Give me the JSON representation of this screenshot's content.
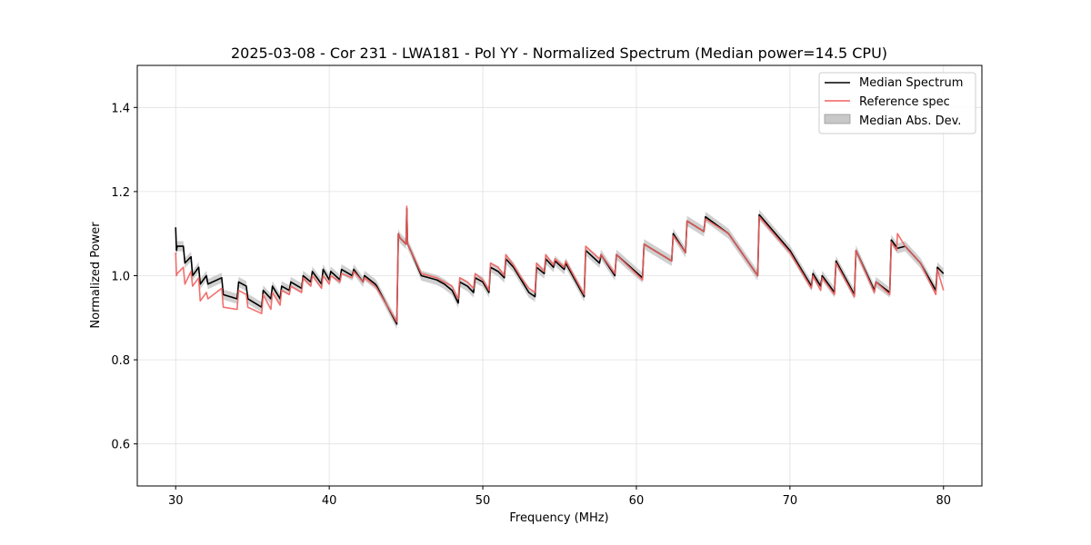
{
  "chart_data": {
    "type": "line",
    "title": "2025-03-08 - Cor 231 - LWA181 - Pol YY - Normalized Spectrum (Median power=14.5 CPU)",
    "xlabel": "Frequency (MHz)",
    "ylabel": "Normalized Power",
    "xlim": [
      27.5,
      82.5
    ],
    "ylim": [
      0.5,
      1.5
    ],
    "xticks": [
      30,
      40,
      50,
      60,
      70,
      80
    ],
    "yticks": [
      0.6,
      0.8,
      1.0,
      1.2,
      1.4
    ],
    "xtick_labels": [
      "30",
      "40",
      "50",
      "60",
      "70",
      "80"
    ],
    "ytick_labels": [
      "0.6",
      "0.8",
      "1.0",
      "1.2",
      "1.4"
    ],
    "grid": true,
    "legend_position": "top-right",
    "legend": [
      "Median Spectrum",
      "Reference spec",
      "Median Abs. Dev."
    ],
    "series": [
      {
        "name": "Median Spectrum",
        "color": "#000000",
        "x": [
          30.0,
          30.05,
          30.1,
          30.5,
          30.6,
          31.0,
          31.1,
          31.5,
          31.6,
          32.0,
          32.1,
          33.0,
          33.1,
          34.0,
          34.1,
          34.6,
          34.7,
          35.6,
          35.7,
          36.2,
          36.3,
          36.8,
          36.9,
          37.4,
          37.5,
          38.2,
          38.3,
          38.8,
          38.9,
          39.5,
          39.6,
          40.0,
          40.1,
          40.7,
          40.8,
          41.5,
          41.6,
          42.2,
          42.3,
          43.0,
          43.1,
          44.4,
          44.5,
          44.6,
          45.0,
          45.05,
          45.1,
          45.3,
          46.0,
          47.0,
          47.5,
          48.0,
          48.4,
          48.5,
          49.0,
          49.4,
          49.5,
          50.0,
          50.4,
          50.5,
          51.0,
          51.4,
          51.5,
          52.0,
          52.5,
          53.0,
          53.4,
          53.5,
          54.0,
          54.1,
          54.6,
          54.7,
          55.3,
          55.4,
          56.6,
          56.7,
          57.6,
          57.7,
          58.6,
          58.7,
          60.4,
          60.5,
          62.3,
          62.4,
          63.2,
          63.3,
          64.4,
          64.5,
          66.0,
          67.9,
          68.0,
          70.0,
          71.4,
          71.5,
          72.0,
          72.1,
          72.9,
          73.0,
          74.2,
          74.3,
          75.5,
          75.6,
          76.5,
          76.6,
          77.0,
          77.5,
          78.5,
          79.5,
          79.6,
          80.0
        ],
        "y": [
          1.115,
          1.06,
          1.07,
          1.07,
          1.03,
          1.045,
          1.0,
          1.02,
          0.98,
          1.0,
          0.98,
          0.995,
          0.955,
          0.945,
          0.985,
          0.975,
          0.945,
          0.925,
          0.965,
          0.945,
          0.975,
          0.945,
          0.975,
          0.965,
          0.985,
          0.97,
          1.0,
          0.985,
          1.01,
          0.98,
          1.015,
          0.99,
          1.01,
          0.99,
          1.015,
          1.0,
          1.015,
          0.985,
          1.0,
          0.98,
          0.975,
          0.885,
          1.1,
          1.09,
          1.075,
          1.16,
          1.075,
          1.06,
          1.0,
          0.99,
          0.98,
          0.965,
          0.935,
          0.985,
          0.975,
          0.96,
          0.995,
          0.985,
          0.96,
          1.02,
          1.01,
          0.995,
          1.04,
          1.02,
          0.99,
          0.96,
          0.95,
          1.02,
          1.005,
          1.04,
          1.02,
          1.035,
          1.015,
          1.03,
          0.95,
          1.06,
          1.03,
          1.05,
          1.0,
          1.05,
          0.995,
          1.075,
          1.035,
          1.1,
          1.055,
          1.13,
          1.105,
          1.14,
          1.1,
          1.0,
          1.145,
          1.06,
          0.975,
          1.005,
          0.975,
          1.0,
          0.96,
          1.035,
          0.955,
          1.06,
          0.965,
          0.985,
          0.96,
          1.085,
          1.065,
          1.07,
          1.03,
          0.965,
          1.02,
          1.005
        ]
      },
      {
        "name": "Reference spec",
        "color": "#f0605e",
        "x": [
          30.0,
          30.05,
          30.1,
          30.5,
          30.6,
          31.0,
          31.1,
          31.5,
          31.6,
          32.0,
          32.1,
          33.0,
          33.1,
          34.0,
          34.1,
          34.6,
          34.7,
          35.6,
          35.7,
          36.2,
          36.3,
          36.8,
          36.9,
          37.4,
          37.5,
          38.2,
          38.3,
          38.8,
          38.9,
          39.5,
          39.6,
          40.0,
          40.1,
          40.7,
          40.8,
          41.5,
          41.6,
          42.2,
          42.3,
          43.0,
          43.1,
          44.4,
          44.5,
          44.6,
          45.0,
          45.05,
          45.1,
          45.3,
          46.0,
          47.0,
          47.5,
          48.0,
          48.4,
          48.5,
          49.0,
          49.4,
          49.5,
          50.0,
          50.4,
          50.5,
          51.0,
          51.4,
          51.5,
          52.0,
          52.5,
          53.0,
          53.4,
          53.5,
          54.0,
          54.1,
          54.6,
          54.7,
          55.3,
          55.4,
          56.6,
          56.7,
          57.6,
          57.7,
          58.6,
          58.7,
          60.4,
          60.5,
          62.3,
          62.4,
          63.2,
          63.3,
          64.4,
          64.5,
          66.0,
          67.9,
          68.0,
          70.0,
          71.4,
          71.5,
          72.0,
          72.1,
          72.9,
          73.0,
          74.2,
          74.3,
          75.5,
          75.6,
          76.5,
          76.6,
          76.95,
          77.0,
          77.5,
          78.5,
          79.5,
          79.6,
          80.0
        ],
        "y": [
          1.055,
          1.0,
          1.005,
          1.02,
          0.98,
          1.01,
          0.975,
          0.995,
          0.94,
          0.96,
          0.945,
          0.97,
          0.925,
          0.92,
          0.965,
          0.955,
          0.925,
          0.91,
          0.955,
          0.92,
          0.96,
          0.93,
          0.965,
          0.955,
          0.975,
          0.96,
          0.995,
          0.975,
          1.0,
          0.97,
          1.0,
          0.98,
          1.0,
          0.985,
          1.005,
          0.995,
          1.01,
          0.985,
          0.995,
          0.975,
          0.97,
          0.89,
          1.1,
          1.09,
          1.075,
          1.165,
          1.075,
          1.06,
          1.005,
          0.995,
          0.985,
          0.975,
          0.945,
          0.995,
          0.985,
          0.97,
          1.005,
          0.99,
          0.965,
          1.03,
          1.02,
          1.0,
          1.05,
          1.025,
          0.995,
          0.97,
          0.96,
          1.03,
          1.01,
          1.05,
          1.025,
          1.04,
          1.02,
          1.035,
          0.955,
          1.07,
          1.04,
          1.05,
          1.005,
          1.05,
          0.99,
          1.075,
          1.035,
          1.095,
          1.055,
          1.13,
          1.105,
          1.135,
          1.1,
          1.0,
          1.14,
          1.055,
          0.97,
          1.0,
          0.965,
          0.995,
          0.955,
          1.03,
          0.95,
          1.06,
          0.96,
          0.985,
          0.955,
          1.08,
          1.06,
          1.1,
          1.07,
          1.03,
          0.955,
          1.015,
          0.965
        ]
      }
    ],
    "band": {
      "name": "Median Abs. Dev.",
      "color": "#c8c8c8",
      "half_width": 0.012
    }
  }
}
